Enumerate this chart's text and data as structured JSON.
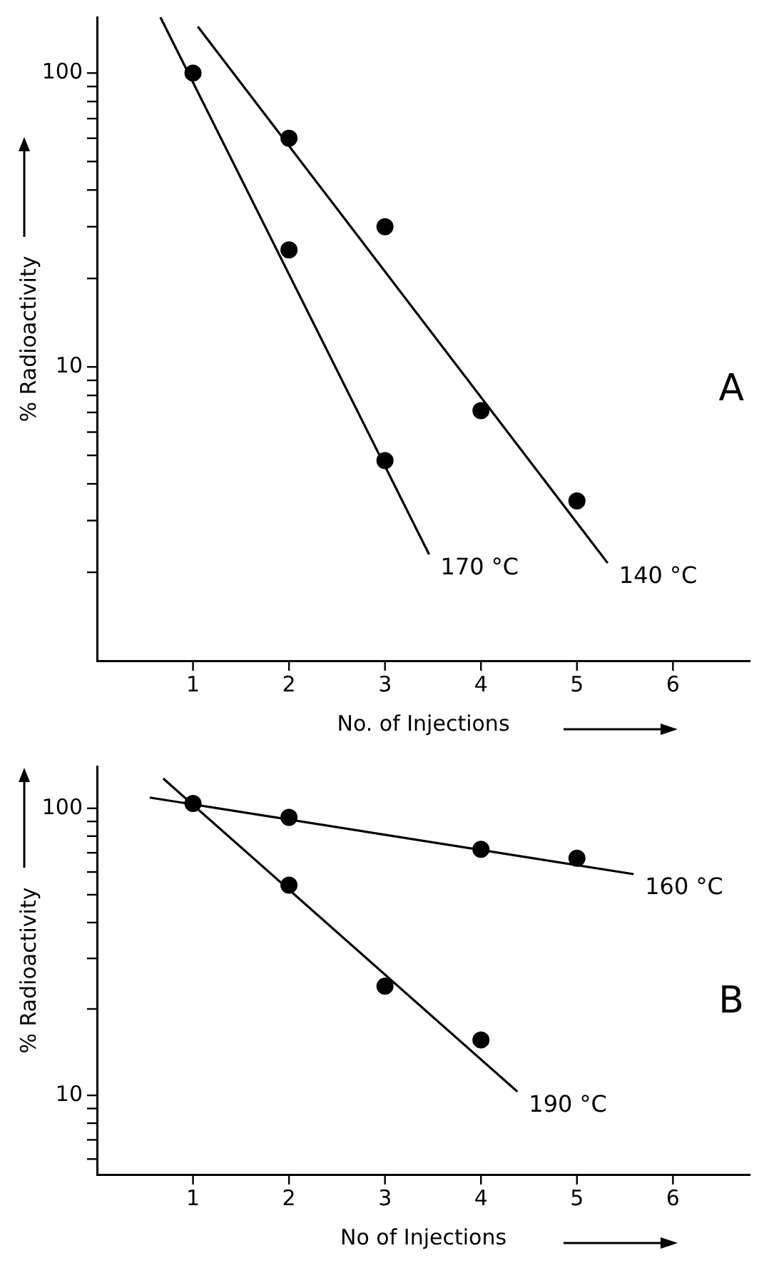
{
  "chart_data": [
    {
      "type": "scatter",
      "xlabel": "No. of Injections",
      "ylabel": "% Radioactivity",
      "annotations": [
        "A"
      ],
      "log": "y",
      "grid": false,
      "legend": false,
      "marker": "circle",
      "line_style": "solid",
      "xlim": [
        0,
        6.8
      ],
      "xticks": [
        1,
        2,
        3,
        4,
        5,
        6
      ],
      "ylim": [
        1,
        155
      ],
      "yticks": [
        {
          "value": 2,
          "label": null
        },
        {
          "value": 3,
          "label": null
        },
        {
          "value": 4,
          "label": null
        },
        {
          "value": 5,
          "label": null
        },
        {
          "value": 6,
          "label": null
        },
        {
          "value": 7,
          "label": null
        },
        {
          "value": 8,
          "label": null
        },
        {
          "value": 9,
          "label": null
        },
        {
          "value": 10,
          "label": "10"
        },
        {
          "value": 20,
          "label": null
        },
        {
          "value": 30,
          "label": null
        },
        {
          "value": 40,
          "label": null
        },
        {
          "value": 50,
          "label": null
        },
        {
          "value": 60,
          "label": null
        },
        {
          "value": 70,
          "label": null
        },
        {
          "value": 80,
          "label": null
        },
        {
          "value": 90,
          "label": null
        },
        {
          "value": 100,
          "label": "100"
        }
      ],
      "series": [
        {
          "type": "scatter",
          "color": "#000000",
          "x": [
            1,
            2,
            3
          ],
          "values": [
            100,
            25,
            4.8
          ]
        },
        {
          "type": "scatter",
          "color": "#000000",
          "x": [
            2,
            3,
            4,
            5
          ],
          "values": [
            60,
            30,
            7.1,
            3.5
          ]
        },
        {
          "type": "line",
          "name": "170 °C",
          "marker": "none",
          "color": "#000000",
          "x": [
            0.66,
            3.46
          ],
          "values": [
            155,
            2.3
          ]
        },
        {
          "type": "line",
          "name": "140 °C",
          "marker": "none",
          "color": "#000000",
          "x": [
            1.05,
            5.32
          ],
          "values": [
            144,
            2.15
          ]
        }
      ]
    },
    {
      "type": "scatter",
      "xlabel": "No of Injections",
      "ylabel": "% Radioactivity",
      "annotations": [
        "B"
      ],
      "log": "y",
      "grid": false,
      "legend": false,
      "marker": "circle",
      "line_style": "solid",
      "xlim": [
        0,
        6.8
      ],
      "xticks": [
        1,
        2,
        3,
        4,
        5,
        6
      ],
      "ylim": [
        5.3,
        140
      ],
      "yticks": [
        {
          "value": 6,
          "label": null
        },
        {
          "value": 7,
          "label": null
        },
        {
          "value": 8,
          "label": null
        },
        {
          "value": 9,
          "label": null
        },
        {
          "value": 10,
          "label": "10"
        },
        {
          "value": 20,
          "label": null
        },
        {
          "value": 30,
          "label": null
        },
        {
          "value": 40,
          "label": null
        },
        {
          "value": 50,
          "label": null
        },
        {
          "value": 60,
          "label": null
        },
        {
          "value": 70,
          "label": null
        },
        {
          "value": 80,
          "label": null
        },
        {
          "value": 90,
          "label": null
        },
        {
          "value": 100,
          "label": "100"
        }
      ],
      "series": [
        {
          "type": "scatter",
          "color": "#000000",
          "x": [
            1,
            2,
            4,
            5
          ],
          "values": [
            104,
            93,
            72,
            67
          ]
        },
        {
          "type": "scatter",
          "color": "#000000",
          "x": [
            2,
            3,
            4
          ],
          "values": [
            54,
            24,
            15.6
          ]
        },
        {
          "type": "line",
          "name": "160 °C",
          "marker": "none",
          "color": "#000000",
          "x": [
            0.55,
            5.59
          ],
          "values": [
            109,
            59
          ]
        },
        {
          "type": "line",
          "name": "190 °C",
          "marker": "none",
          "color": "#000000",
          "x": [
            0.69,
            4.38
          ],
          "values": [
            127,
            10.3
          ]
        }
      ]
    }
  ]
}
